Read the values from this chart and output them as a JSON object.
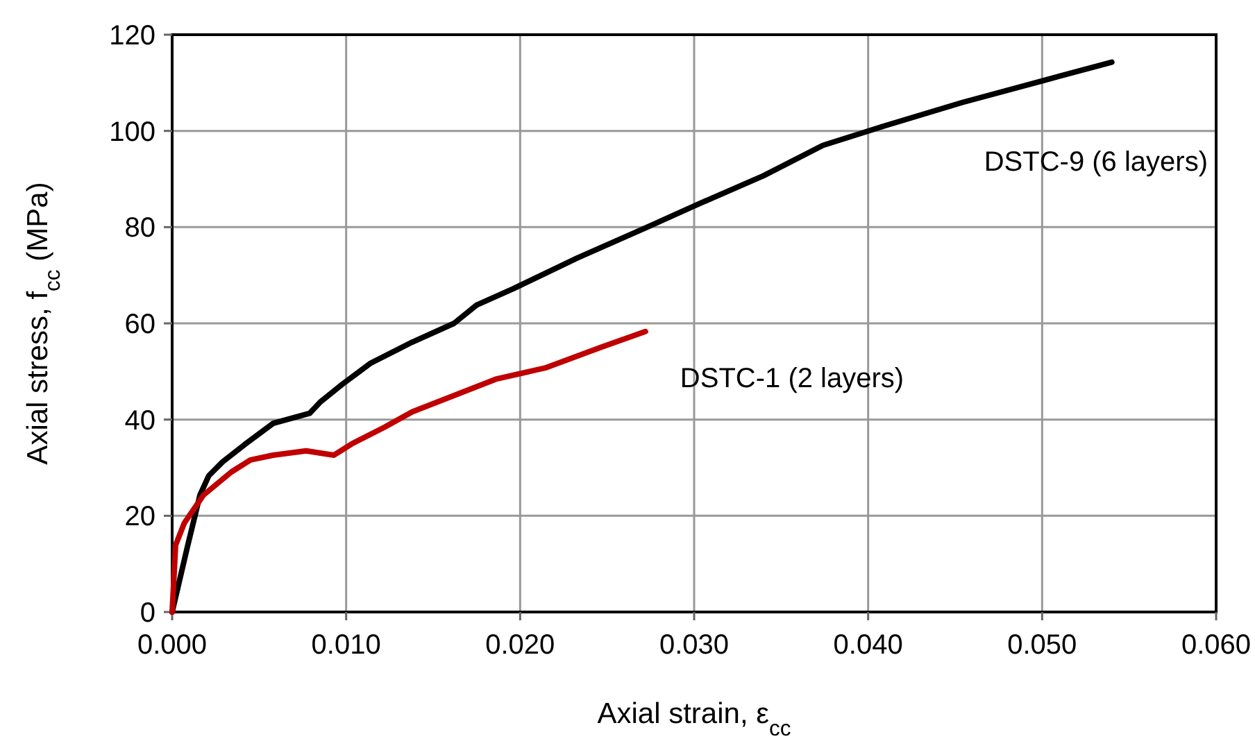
{
  "chart_data": {
    "type": "line",
    "xlabel": "Axial strain, ε$_{cc}$",
    "ylabel": "Axial stress, f$_{cc}$ (MPa)",
    "xlim": [
      0,
      0.06
    ],
    "ylim": [
      0,
      120
    ],
    "xticks": [
      {
        "value": 0,
        "label": "0.000"
      },
      {
        "value": 0.01,
        "label": "0.010"
      },
      {
        "value": 0.02,
        "label": "0.020"
      },
      {
        "value": 0.03,
        "label": "0.030"
      },
      {
        "value": 0.04,
        "label": "0.040"
      },
      {
        "value": 0.05,
        "label": "0.050"
      },
      {
        "value": 0.06,
        "label": "0.060"
      }
    ],
    "yticks": [
      0,
      20,
      40,
      60,
      80,
      100,
      120
    ],
    "grid": true,
    "marker": "none",
    "line_style": "solid",
    "series": [
      {
        "name": "DSTC-9 (6 layers)",
        "color": "#000000",
        "x": [
          0,
          0.0009,
          0.0016,
          0.0021,
          0.0029,
          0.0042,
          0.0058,
          0.0079,
          0.0085,
          0.0098,
          0.0114,
          0.0138,
          0.0162,
          0.0175,
          0.0196,
          0.0233,
          0.0273,
          0.03,
          0.034,
          0.0374,
          0.0409,
          0.0454,
          0.05,
          0.054
        ],
        "values": [
          0,
          13.9,
          24.3,
          28.3,
          31.2,
          34.9,
          39.2,
          41.3,
          43.6,
          47.4,
          51.7,
          56.1,
          60,
          63.8,
          67.2,
          73.6,
          80,
          84.4,
          90.7,
          97,
          101,
          105.9,
          110.4,
          114.3
        ]
      },
      {
        "name": "DSTC-1 (2 layers)",
        "color": "#c00000",
        "x": [
          0,
          0.0002,
          0.0007,
          0.0018,
          0.0034,
          0.0045,
          0.0058,
          0.0077,
          0.0093,
          0.0103,
          0.0122,
          0.0138,
          0.0162,
          0.0186,
          0.0215,
          0.0247,
          0.0272
        ],
        "values": [
          0,
          13.9,
          18.5,
          24.3,
          29.1,
          31.6,
          32.6,
          33.5,
          32.6,
          34.9,
          38.4,
          41.6,
          45,
          48.4,
          50.8,
          55.1,
          58.3
        ]
      }
    ]
  }
}
